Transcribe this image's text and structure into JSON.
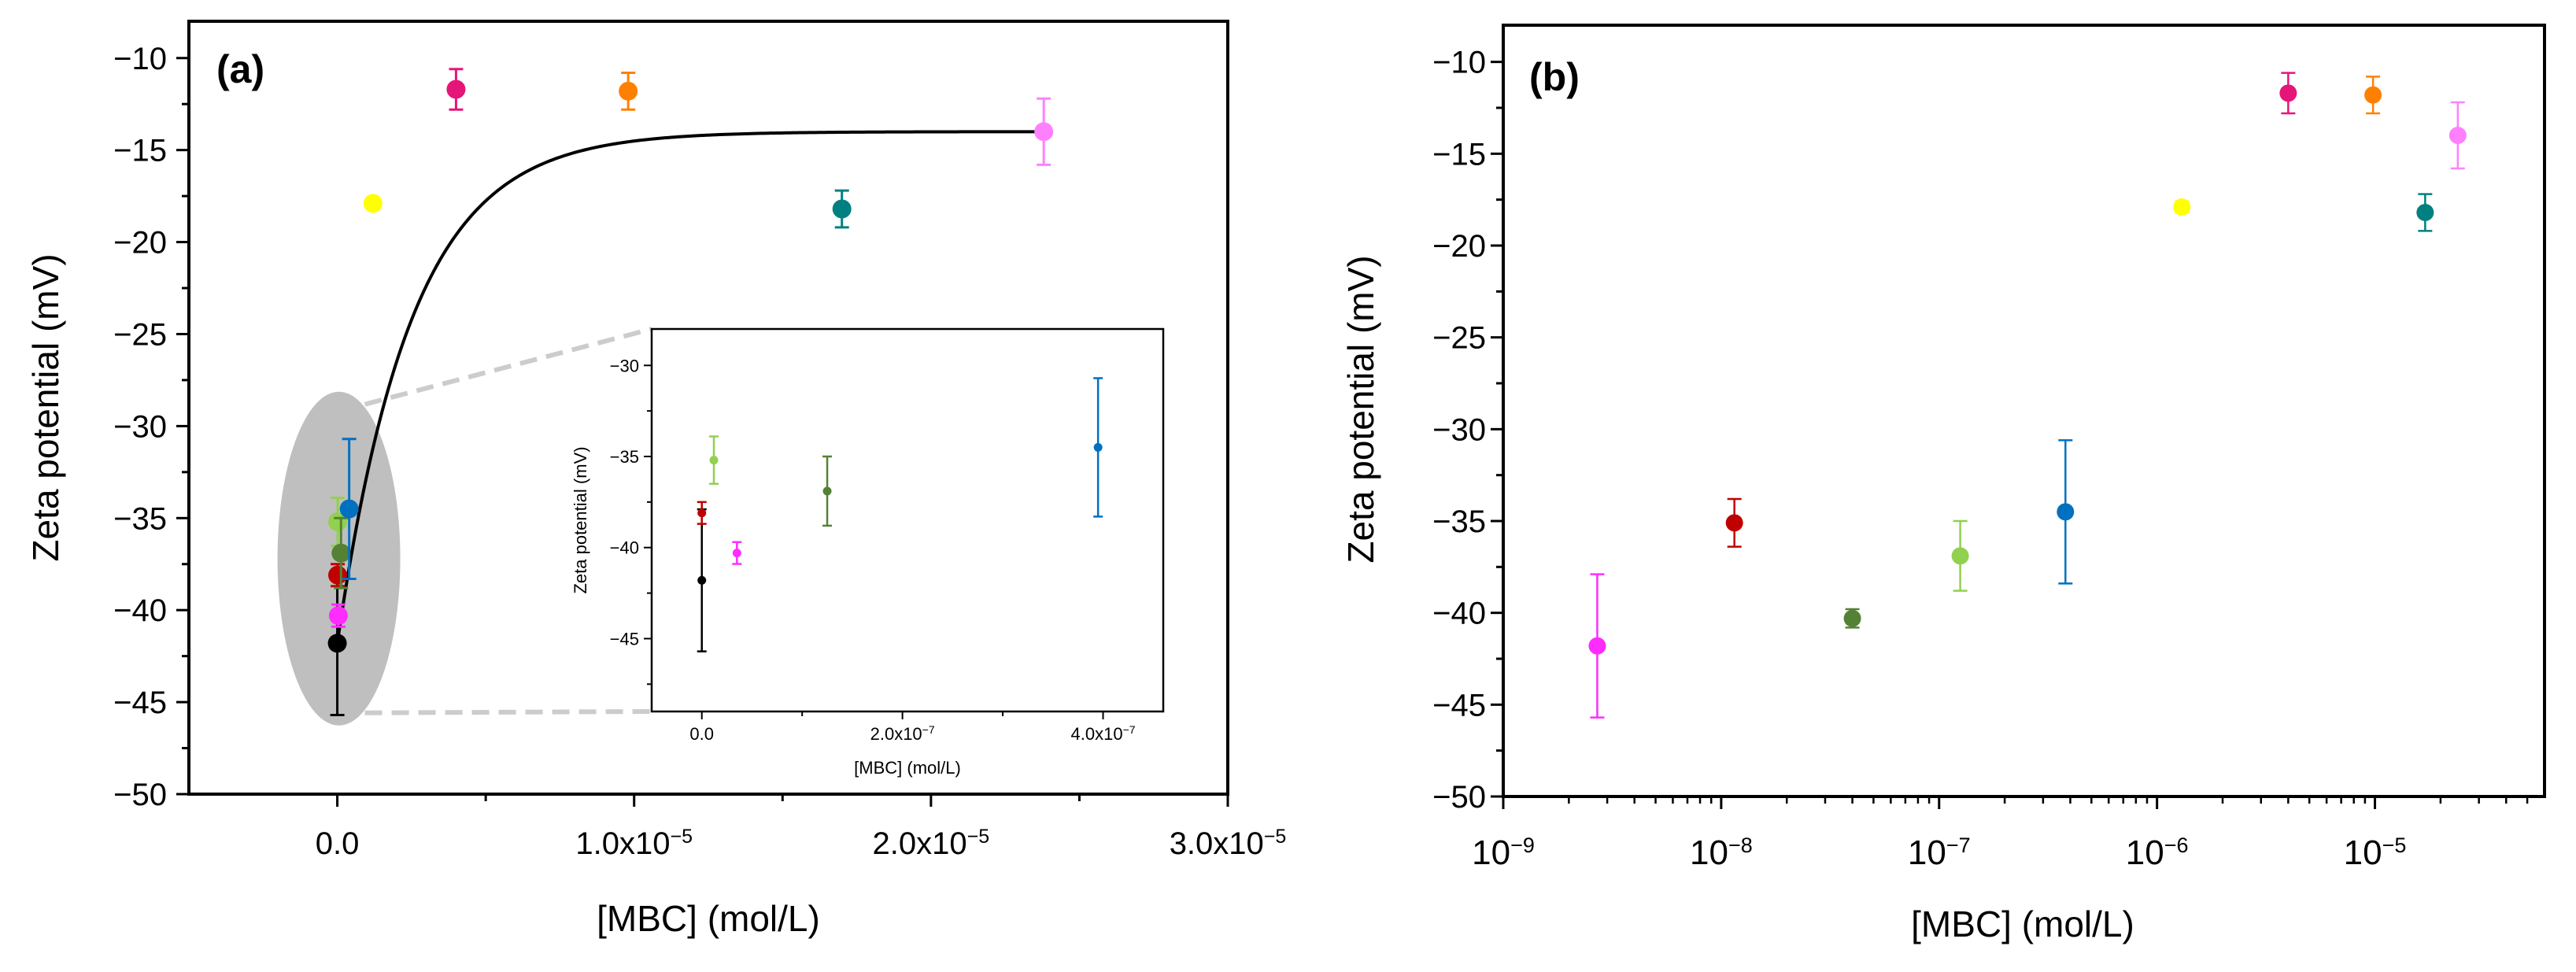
{
  "chart_data": [
    {
      "panel": "(a)",
      "type": "scatter",
      "xlabel": "[MBC] (mol/L)",
      "ylabel": "Zeta potential (mV)",
      "xlim": [
        -5e-06,
        3e-05
      ],
      "ylim": [
        -50,
        -8
      ],
      "xticks": [
        0,
        1e-05,
        2e-05,
        3e-05
      ],
      "xtick_labels": [
        {
          "m": "0.0",
          "e": ""
        },
        {
          "m": "1.0x10",
          "e": "−5"
        },
        {
          "m": "2.0x10",
          "e": "−5"
        },
        {
          "m": "3.0x10",
          "e": "−5"
        }
      ],
      "yticks": [
        -50,
        -45,
        -40,
        -35,
        -30,
        -25,
        -20,
        -15,
        -10
      ],
      "ytick_labels": [
        "−50",
        "−45",
        "−40",
        "−35",
        "−30",
        "−25",
        "−20",
        "−15",
        "−10"
      ],
      "series": [
        {
          "name": "black",
          "color": "#000000",
          "x": 0,
          "y": -41.8,
          "err": 3.9
        },
        {
          "name": "red",
          "color": "#c00000",
          "x": 1.2e-08,
          "y": -38.1,
          "err": 0.6
        },
        {
          "name": "magenta",
          "color": "#ff2cff",
          "x": 3.5e-08,
          "y": -40.3,
          "err": 0.6
        },
        {
          "name": "light-green",
          "color": "#92d050",
          "x": 1.2e-08,
          "y": -35.2,
          "err": 1.3
        },
        {
          "name": "olive-green",
          "color": "#548235",
          "x": 1.25e-07,
          "y": -36.9,
          "err": 1.9
        },
        {
          "name": "blue",
          "color": "#0070c0",
          "x": 4e-07,
          "y": -34.5,
          "err": 3.8
        },
        {
          "name": "yellow",
          "color": "#ffff00",
          "x": 1.2e-06,
          "y": -17.9,
          "err": 0.3
        },
        {
          "name": "crimson",
          "color": "#e6157a",
          "x": 4e-06,
          "y": -11.7,
          "err": 1.1
        },
        {
          "name": "orange",
          "color": "#ff8000",
          "x": 9.8e-06,
          "y": -11.8,
          "err": 1.0
        },
        {
          "name": "teal",
          "color": "#008080",
          "x": 1.7e-05,
          "y": -18.2,
          "err": 1.0
        },
        {
          "name": "pink",
          "color": "#ff80ff",
          "x": 2.38e-05,
          "y": -14.0,
          "err": 1.8
        }
      ],
      "fit": {
        "type": "exponential-saturation",
        "plateau": -14.0,
        "y0": -41.8,
        "rate": 400000.0,
        "color": "#000000"
      },
      "annotations": [
        "grey ellipse highlighting low-concentration cluster with zoom inset"
      ],
      "inset": {
        "type": "scatter",
        "xlabel": "[MBC] (mol/L)",
        "ylabel": "Zeta potential (mV)",
        "xlim": [
          -5e-08,
          4.6e-07
        ],
        "ylim": [
          -49,
          -28
        ],
        "xticks": [
          0,
          2e-07,
          4e-07
        ],
        "xtick_labels": [
          {
            "m": "0.0",
            "e": ""
          },
          {
            "m": "2.0x10",
            "e": "−7"
          },
          {
            "m": "4.0x10",
            "e": "−7"
          }
        ],
        "yticks": [
          -45,
          -40,
          -35,
          -30
        ],
        "ytick_labels": [
          "−45",
          "−40",
          "−35",
          "−30"
        ],
        "series": [
          {
            "name": "black",
            "color": "#000000",
            "x": 0,
            "y": -41.8,
            "err": 3.9
          },
          {
            "name": "red",
            "color": "#c00000",
            "x": 0,
            "y": -38.1,
            "err": 0.6
          },
          {
            "name": "light-green",
            "color": "#92d050",
            "x": 1.2e-08,
            "y": -35.2,
            "err": 1.3
          },
          {
            "name": "magenta",
            "color": "#ff2cff",
            "x": 3.5e-08,
            "y": -40.3,
            "err": 0.6
          },
          {
            "name": "olive-green",
            "color": "#548235",
            "x": 1.25e-07,
            "y": -36.9,
            "err": 1.9
          },
          {
            "name": "blue",
            "color": "#0070c0",
            "x": 3.95e-07,
            "y": -34.5,
            "err": 3.8
          }
        ]
      }
    },
    {
      "panel": "(b)",
      "type": "scatter",
      "xscale": "log",
      "xlabel": "[MBC] (mol/L)",
      "ylabel": "Zeta potential (mV)",
      "xlim": [
        1e-09,
        6e-05
      ],
      "ylim": [
        -50,
        -8
      ],
      "xticks": [
        1e-09,
        1e-08,
        1e-07,
        1e-06,
        1e-05
      ],
      "xtick_labels": [
        {
          "m": "10",
          "e": "−9"
        },
        {
          "m": "10",
          "e": "−8"
        },
        {
          "m": "10",
          "e": "−7"
        },
        {
          "m": "10",
          "e": "−6"
        },
        {
          "m": "10",
          "e": "−5"
        }
      ],
      "yticks": [
        -50,
        -45,
        -40,
        -35,
        -30,
        -25,
        -20,
        -15,
        -10
      ],
      "ytick_labels": [
        "−50",
        "−45",
        "−40",
        "−35",
        "−30",
        "−25",
        "−20",
        "−15",
        "−10"
      ],
      "series": [
        {
          "name": "magenta",
          "color": "#ff2cff",
          "x": 2.7e-09,
          "y": -41.8,
          "err": 3.9
        },
        {
          "name": "red",
          "color": "#c00000",
          "x": 1.15e-08,
          "y": -35.1,
          "err": 1.3
        },
        {
          "name": "olive-green",
          "color": "#548235",
          "x": 4e-08,
          "y": -40.3,
          "err": 0.5
        },
        {
          "name": "light-green",
          "color": "#92d050",
          "x": 1.25e-07,
          "y": -36.9,
          "err": 1.9
        },
        {
          "name": "blue",
          "color": "#0070c0",
          "x": 3.8e-07,
          "y": -34.5,
          "err": 3.9
        },
        {
          "name": "yellow",
          "color": "#ffff00",
          "x": 1.3e-06,
          "y": -17.9,
          "err": 0.3
        },
        {
          "name": "crimson",
          "color": "#e6157a",
          "x": 4e-06,
          "y": -11.7,
          "err": 1.1
        },
        {
          "name": "orange",
          "color": "#ff8000",
          "x": 9.8e-06,
          "y": -11.8,
          "err": 1.0
        },
        {
          "name": "teal",
          "color": "#008080",
          "x": 1.7e-05,
          "y": -18.2,
          "err": 1.0
        },
        {
          "name": "pink",
          "color": "#ff80ff",
          "x": 2.4e-05,
          "y": -14.0,
          "err": 1.8
        }
      ]
    }
  ],
  "colors": {
    "axis": "#000000",
    "ellipse": "#bfbfbf",
    "zoom_lines": "#cccccc"
  }
}
